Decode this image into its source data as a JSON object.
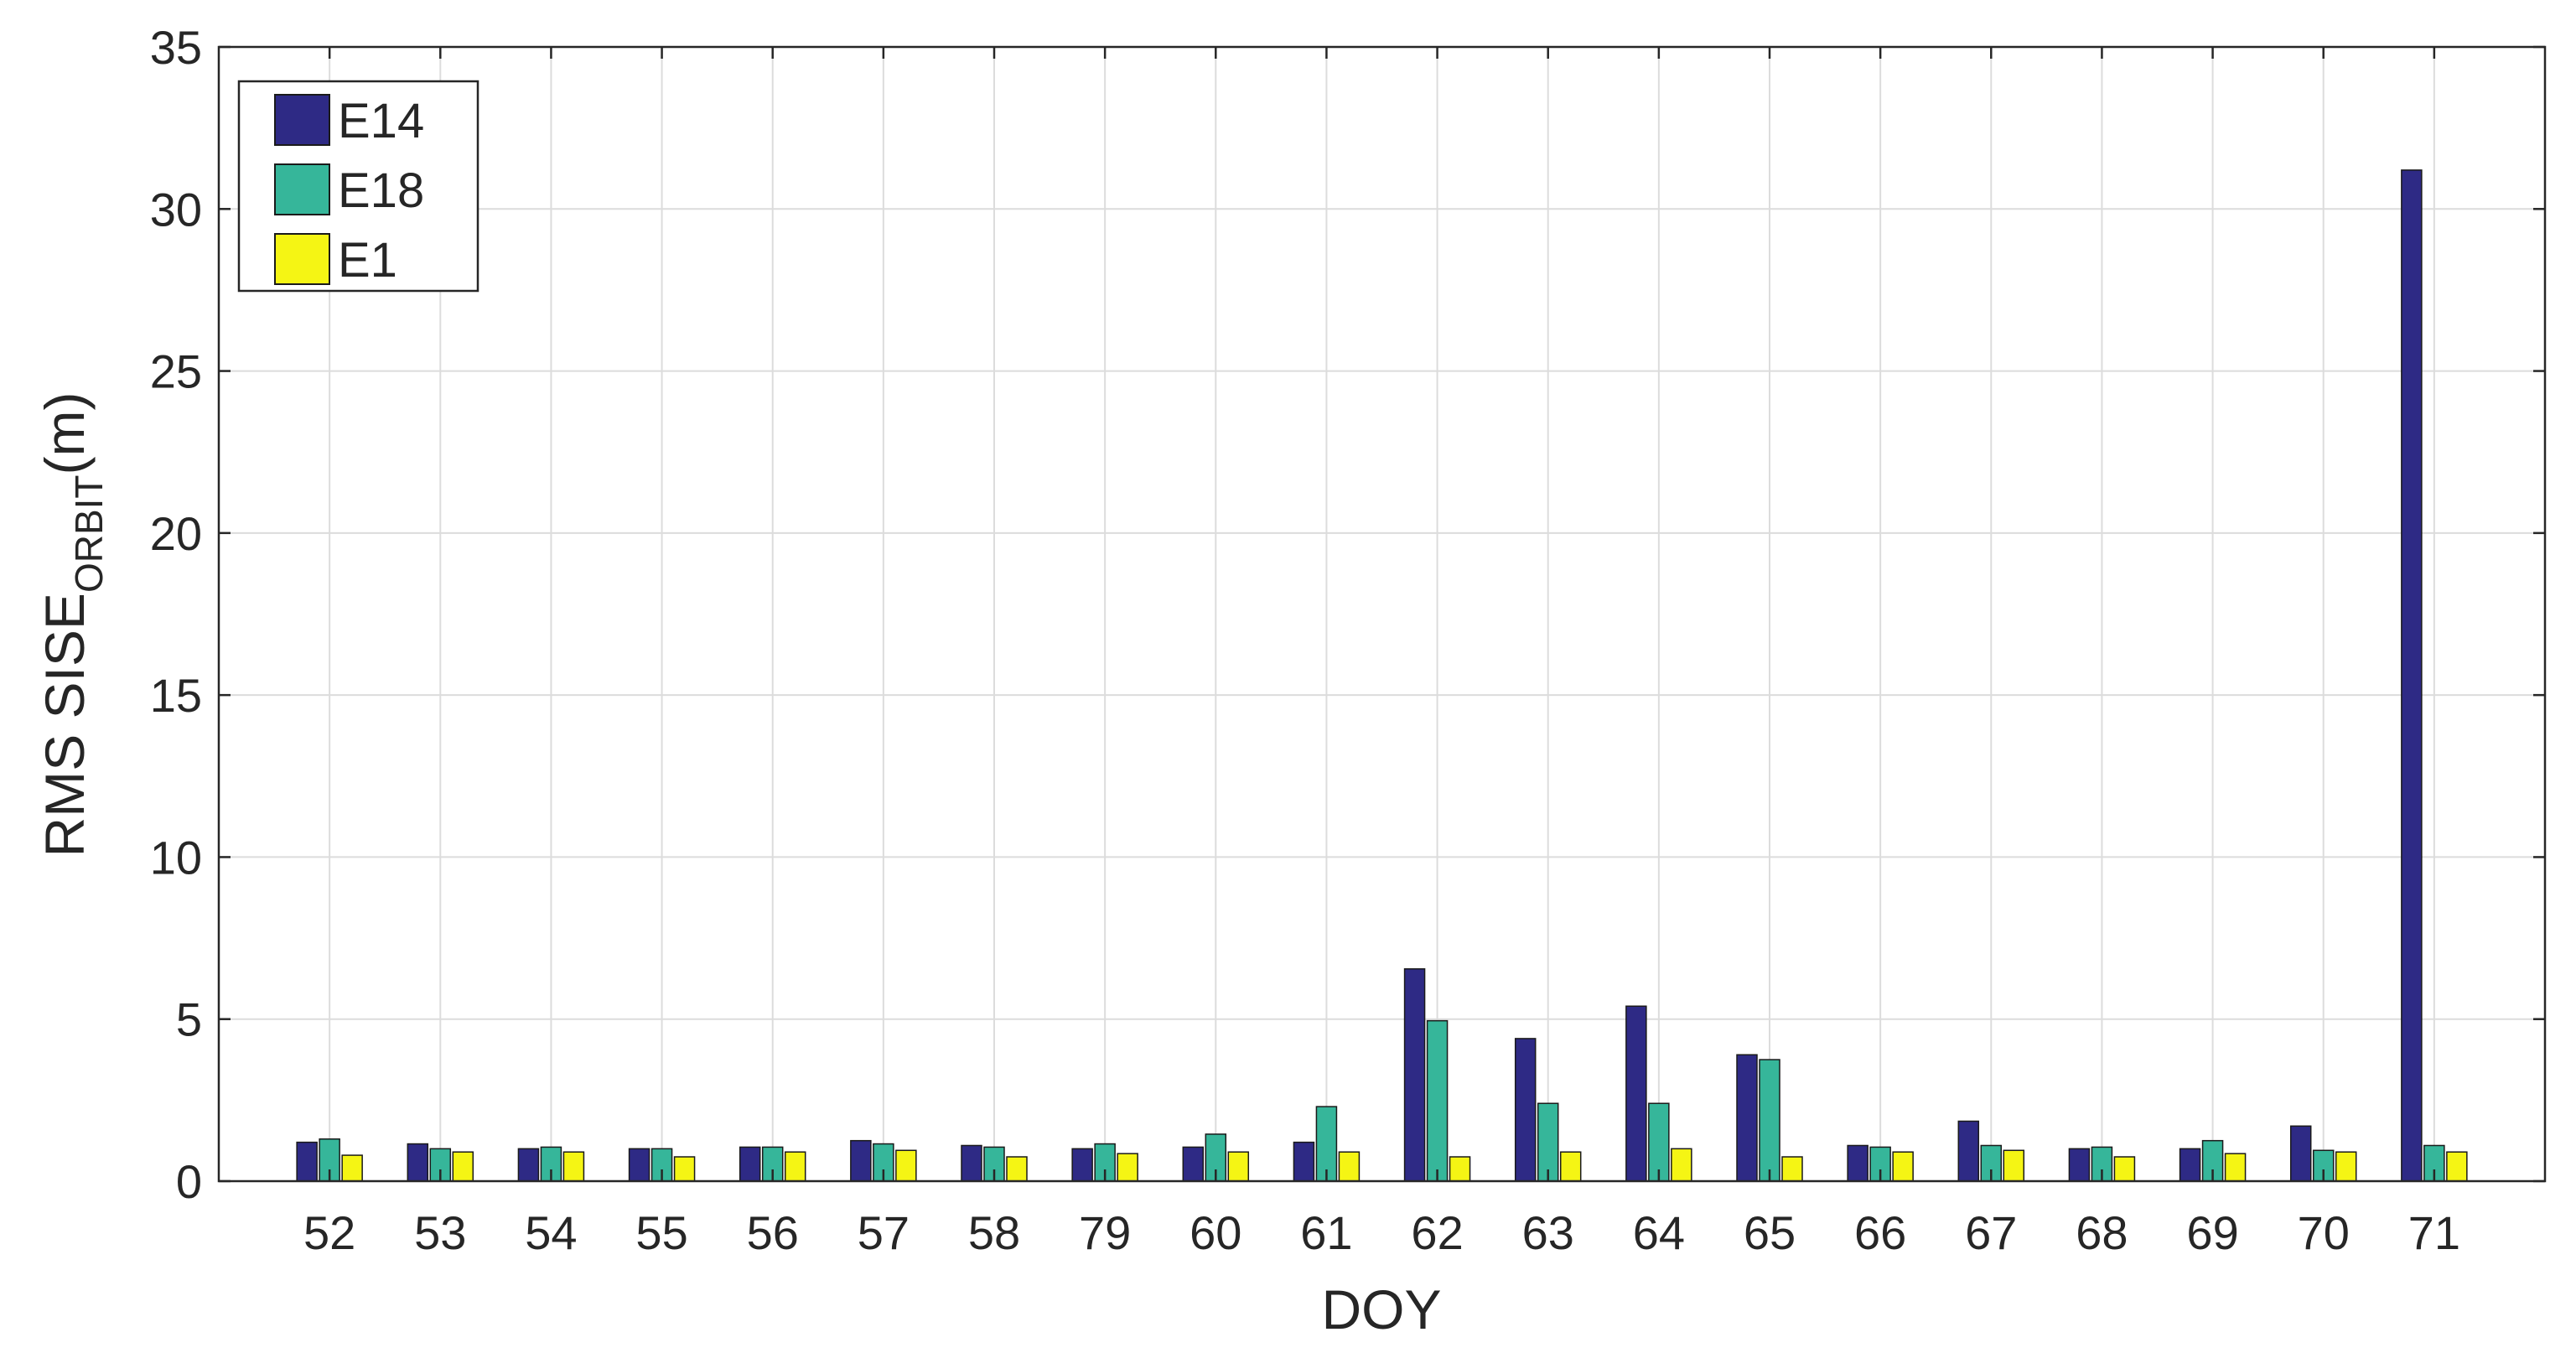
{
  "chart_data": {
    "type": "bar",
    "categories": [
      "52",
      "53",
      "54",
      "55",
      "56",
      "57",
      "58",
      "79",
      "60",
      "61",
      "62",
      "63",
      "64",
      "65",
      "66",
      "67",
      "68",
      "69",
      "70",
      "71"
    ],
    "series": [
      {
        "name": "E14",
        "color": "#2e2a85",
        "values": [
          1.2,
          1.15,
          1.0,
          1.0,
          1.05,
          1.25,
          1.1,
          1.0,
          1.05,
          1.2,
          6.55,
          4.4,
          5.4,
          3.9,
          1.1,
          1.85,
          1.0,
          1.0,
          1.7,
          31.2
        ]
      },
      {
        "name": "E18",
        "color": "#36b69a",
        "values": [
          1.3,
          1.0,
          1.05,
          1.0,
          1.05,
          1.15,
          1.05,
          1.15,
          1.45,
          2.3,
          4.95,
          2.4,
          2.4,
          3.75,
          1.05,
          1.1,
          1.05,
          1.25,
          0.95,
          1.1
        ]
      },
      {
        "name": "E1",
        "color": "#f5f514",
        "values": [
          0.8,
          0.9,
          0.9,
          0.75,
          0.9,
          0.95,
          0.75,
          0.85,
          0.9,
          0.9,
          0.75,
          0.9,
          1.0,
          0.75,
          0.9,
          0.95,
          0.75,
          0.85,
          0.9,
          0.9
        ]
      }
    ],
    "xlabel": "DOY",
    "ylabel": {
      "main": "RMS SISE",
      "subscript": "ORBIT",
      "suffix": "(m)"
    },
    "ylim": [
      0,
      35
    ],
    "yticks": [
      "0",
      "5",
      "10",
      "15",
      "20",
      "25",
      "30",
      "35"
    ],
    "grid": true,
    "legend_position": "top-left"
  }
}
